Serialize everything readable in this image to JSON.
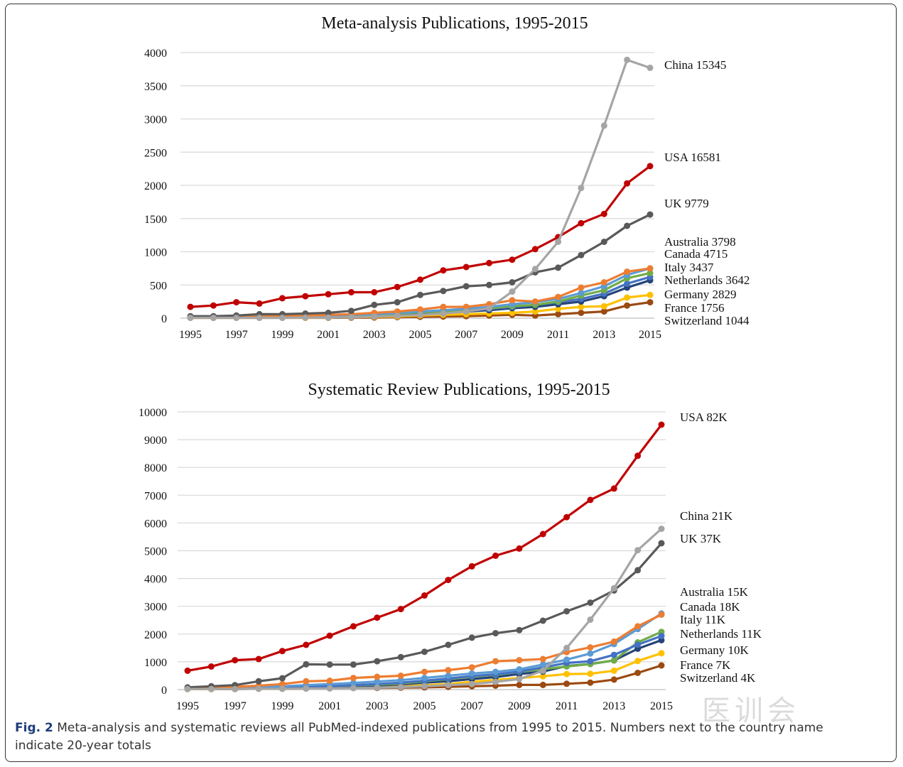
{
  "chart_data": [
    {
      "type": "line",
      "title": "Meta-analysis  Publications, 1995-2015",
      "xlabel": "",
      "ylabel": "",
      "x": [
        1995,
        1996,
        1997,
        1998,
        1999,
        2000,
        2001,
        2002,
        2003,
        2004,
        2005,
        2006,
        2007,
        2008,
        2009,
        2010,
        2011,
        2012,
        2013,
        2014,
        2015
      ],
      "x_tick_labels": [
        "1995",
        "1997",
        "1999",
        "2001",
        "2003",
        "2005",
        "2007",
        "2009",
        "2011",
        "2013",
        "2015"
      ],
      "ylim": [
        0,
        4000
      ],
      "y_ticks": [
        0,
        500,
        1000,
        1500,
        2000,
        2500,
        3000,
        3500,
        4000
      ],
      "grid": true,
      "series": [
        {
          "name": "Switzerland",
          "label": "Switzerland  1044",
          "color": "#9b4a12",
          "values": [
            5,
            5,
            5,
            5,
            5,
            5,
            5,
            8,
            10,
            15,
            20,
            25,
            30,
            40,
            50,
            40,
            60,
            80,
            100,
            190,
            240
          ]
        },
        {
          "name": "France",
          "label": "France  1756",
          "color": "#ffc000",
          "values": [
            5,
            5,
            5,
            5,
            8,
            8,
            10,
            15,
            20,
            25,
            40,
            50,
            60,
            70,
            80,
            100,
            140,
            170,
            180,
            310,
            350
          ]
        },
        {
          "name": "Germany",
          "label": "Germany  2829",
          "color": "#264478",
          "values": [
            10,
            10,
            15,
            15,
            20,
            25,
            30,
            40,
            50,
            60,
            70,
            80,
            100,
            120,
            150,
            170,
            210,
            250,
            330,
            460,
            570
          ]
        },
        {
          "name": "Netherlands",
          "label": "Netherlands 3642",
          "color": "#4472c4",
          "values": [
            10,
            10,
            15,
            15,
            20,
            25,
            30,
            40,
            50,
            70,
            90,
            100,
            110,
            140,
            170,
            200,
            240,
            290,
            370,
            520,
            620
          ]
        },
        {
          "name": "Italy",
          "label": "Italy  3437",
          "color": "#70ad47",
          "values": [
            10,
            10,
            15,
            15,
            20,
            25,
            30,
            40,
            50,
            70,
            90,
            100,
            120,
            150,
            180,
            200,
            250,
            340,
            420,
            600,
            680
          ]
        },
        {
          "name": "Canada",
          "label": "Canada 4715",
          "color": "#5b9bd5",
          "values": [
            10,
            15,
            20,
            25,
            30,
            35,
            40,
            50,
            60,
            80,
            100,
            120,
            140,
            170,
            210,
            240,
            290,
            380,
            480,
            650,
            750
          ]
        },
        {
          "name": "Australia",
          "label": "Australia 3798",
          "color": "#ed7d31",
          "values": [
            15,
            15,
            20,
            25,
            30,
            40,
            50,
            60,
            80,
            100,
            130,
            170,
            170,
            210,
            270,
            250,
            320,
            460,
            540,
            700,
            750
          ]
        },
        {
          "name": "UK",
          "label": "UK 9779",
          "color": "#595959",
          "values": [
            30,
            30,
            40,
            60,
            60,
            70,
            80,
            110,
            200,
            240,
            350,
            410,
            480,
            500,
            540,
            690,
            760,
            950,
            1150,
            1390,
            1560
          ]
        },
        {
          "name": "USA",
          "label": "USA 16581",
          "color": "#c00000",
          "values": [
            170,
            190,
            240,
            220,
            300,
            330,
            360,
            390,
            390,
            470,
            580,
            720,
            770,
            830,
            880,
            1040,
            1220,
            1430,
            1570,
            2030,
            2290
          ]
        },
        {
          "name": "China",
          "label": "China 15345",
          "color": "#a5a5a5",
          "values": [
            5,
            5,
            5,
            5,
            5,
            10,
            10,
            15,
            25,
            35,
            50,
            70,
            100,
            150,
            400,
            740,
            1150,
            1960,
            2900,
            3890,
            3770
          ]
        }
      ]
    },
    {
      "type": "line",
      "title": "Systematic Review Publications, 1995-2015",
      "xlabel": "",
      "ylabel": "",
      "x": [
        1995,
        1996,
        1997,
        1998,
        1999,
        2000,
        2001,
        2002,
        2003,
        2004,
        2005,
        2006,
        2007,
        2008,
        2009,
        2010,
        2011,
        2012,
        2013,
        2014,
        2015
      ],
      "x_tick_labels": [
        "1995",
        "1997",
        "1999",
        "2001",
        "2003",
        "2005",
        "2007",
        "2009",
        "2011",
        "2013",
        "2015"
      ],
      "ylim": [
        0,
        10000
      ],
      "y_ticks": [
        0,
        1000,
        2000,
        3000,
        4000,
        5000,
        6000,
        7000,
        8000,
        9000,
        10000
      ],
      "grid": true,
      "series": [
        {
          "name": "Switzerland",
          "label": "Switzerland 4K",
          "color": "#9b4a12",
          "values": [
            20,
            20,
            20,
            30,
            30,
            40,
            50,
            60,
            60,
            70,
            80,
            100,
            120,
            140,
            170,
            170,
            210,
            250,
            360,
            600,
            870
          ]
        },
        {
          "name": "France",
          "label": "France 7K",
          "color": "#ffc000",
          "values": [
            20,
            20,
            30,
            30,
            40,
            60,
            70,
            80,
            100,
            120,
            160,
            200,
            280,
            350,
            420,
            480,
            560,
            570,
            680,
            1030,
            1310
          ]
        },
        {
          "name": "Germany",
          "label": "Germany 10K",
          "color": "#264478",
          "values": [
            30,
            40,
            50,
            50,
            60,
            80,
            90,
            120,
            150,
            190,
            250,
            300,
            380,
            450,
            560,
            650,
            850,
            920,
            1050,
            1470,
            1780
          ]
        },
        {
          "name": "Netherlands",
          "label": "Netherlands 11K",
          "color": "#70ad47",
          "values": [
            30,
            40,
            50,
            60,
            80,
            100,
            120,
            150,
            180,
            220,
            300,
            380,
            470,
            530,
            640,
            740,
            830,
            920,
            1050,
            1700,
            2080
          ]
        },
        {
          "name": "Italy",
          "label": "Italy 11K",
          "color": "#4472c4",
          "values": [
            30,
            40,
            50,
            60,
            80,
            100,
            120,
            160,
            200,
            250,
            320,
            400,
            490,
            550,
            650,
            800,
            960,
            1020,
            1250,
            1620,
            1930
          ]
        },
        {
          "name": "Canada",
          "label": "Canada 18K",
          "color": "#5b9bd5",
          "values": [
            40,
            50,
            70,
            90,
            120,
            160,
            200,
            240,
            290,
            340,
            420,
            500,
            580,
            640,
            730,
            900,
            1080,
            1300,
            1640,
            2180,
            2740
          ]
        },
        {
          "name": "Australia",
          "label": "Australia 15K",
          "color": "#ed7d31",
          "values": [
            60,
            80,
            100,
            140,
            200,
            300,
            320,
            420,
            460,
            500,
            640,
            700,
            800,
            1020,
            1060,
            1100,
            1350,
            1520,
            1730,
            2280,
            2700
          ]
        },
        {
          "name": "UK",
          "label": "UK  37K",
          "color": "#595959",
          "values": [
            80,
            120,
            160,
            300,
            410,
            910,
            900,
            900,
            1020,
            1170,
            1360,
            1610,
            1870,
            2030,
            2140,
            2480,
            2820,
            3130,
            3570,
            4300,
            5270
          ]
        },
        {
          "name": "USA",
          "label": "USA  82K",
          "color": "#c00000",
          "values": [
            680,
            830,
            1060,
            1100,
            1390,
            1610,
            1940,
            2280,
            2590,
            2900,
            3390,
            3950,
            4440,
            4820,
            5080,
            5600,
            6210,
            6830,
            7240,
            8420,
            9540
          ]
        },
        {
          "name": "China",
          "label": "China 21K",
          "color": "#a5a5a5",
          "values": [
            20,
            20,
            20,
            30,
            30,
            40,
            40,
            50,
            70,
            90,
            120,
            160,
            200,
            280,
            380,
            680,
            1500,
            2520,
            3650,
            5020,
            5790
          ]
        }
      ]
    }
  ],
  "caption": {
    "fig_label": "Fig. 2",
    "text": " Meta-analysis and systematic reviews all PubMed-indexed publications from 1995 to 2015. Numbers next to the country name indicate 20-year totals"
  },
  "watermark": "医训会"
}
